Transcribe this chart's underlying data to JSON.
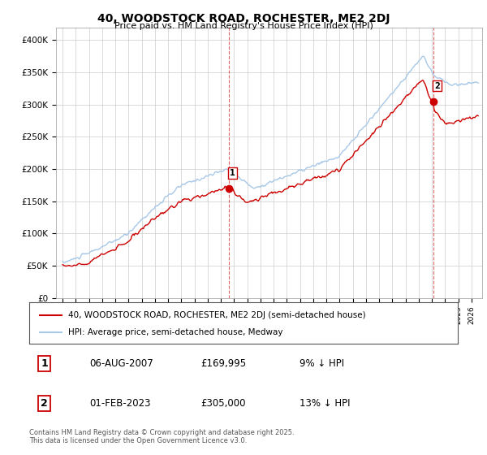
{
  "title": "40, WOODSTOCK ROAD, ROCHESTER, ME2 2DJ",
  "subtitle": "Price paid vs. HM Land Registry's House Price Index (HPI)",
  "ylabel_ticks": [
    "£0",
    "£50K",
    "£100K",
    "£150K",
    "£200K",
    "£250K",
    "£300K",
    "£350K",
    "£400K"
  ],
  "ylim": [
    0,
    420000
  ],
  "xlim_start": 1994.5,
  "xlim_end": 2026.8,
  "line_color_red": "#cc0000",
  "line_color_blue": "#a8c8e8",
  "marker1_x": 2007.59,
  "marker1_y": 169995,
  "marker2_x": 2023.08,
  "marker2_y": 305000,
  "legend_line1": "40, WOODSTOCK ROAD, ROCHESTER, ME2 2DJ (semi-detached house)",
  "legend_line2": "HPI: Average price, semi-detached house, Medway",
  "ann1_label": "1",
  "ann1_date": "06-AUG-2007",
  "ann1_price": "£169,995",
  "ann1_hpi": "9% ↓ HPI",
  "ann2_label": "2",
  "ann2_date": "01-FEB-2023",
  "ann2_price": "£305,000",
  "ann2_hpi": "13% ↓ HPI",
  "footnote": "Contains HM Land Registry data © Crown copyright and database right 2025.\nThis data is licensed under the Open Government Licence v3.0.",
  "bg_color": "#ffffff",
  "plot_bg_color": "#ffffff",
  "grid_color": "#cccccc"
}
